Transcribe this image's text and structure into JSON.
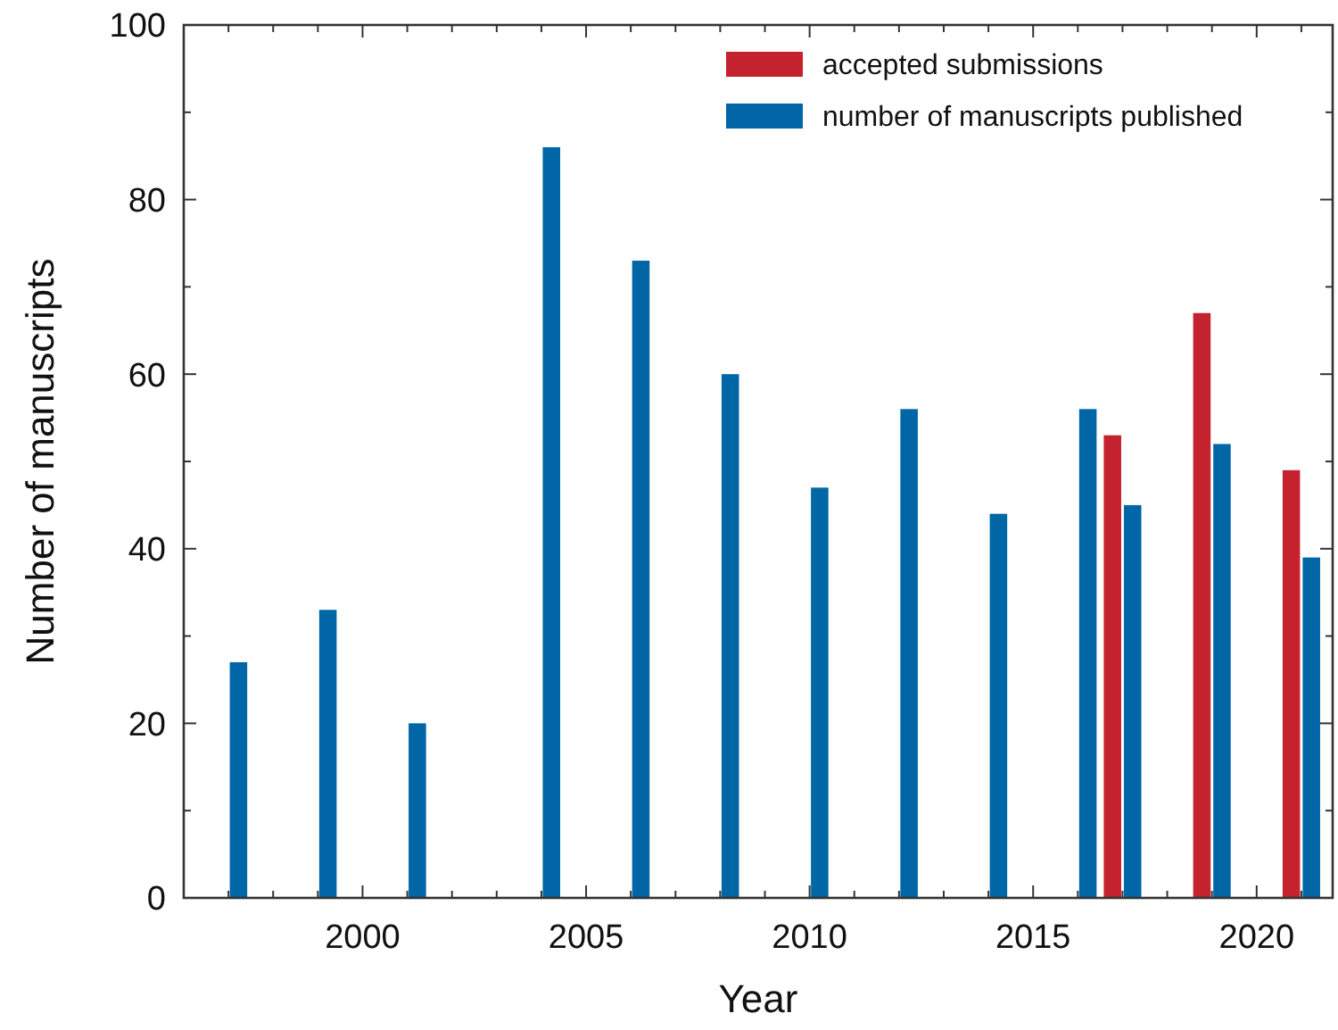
{
  "chart_data": {
    "type": "bar",
    "xlabel": "Year",
    "ylabel": "Number of manuscripts",
    "xlim": [
      1996,
      2021.7
    ],
    "xticks": [
      {
        "value": 1997,
        "label": null
      },
      {
        "value": 1998,
        "label": null
      },
      {
        "value": 1999,
        "label": null
      },
      2000,
      {
        "value": 2001,
        "label": null
      },
      {
        "value": 2002,
        "label": null
      },
      {
        "value": 2003,
        "label": null
      },
      {
        "value": 2004,
        "label": null
      },
      2005,
      {
        "value": 2006,
        "label": null
      },
      {
        "value": 2007,
        "label": null
      },
      {
        "value": 2008,
        "label": null
      },
      {
        "value": 2009,
        "label": null
      },
      2010,
      {
        "value": 2011,
        "label": null
      },
      {
        "value": 2012,
        "label": null
      },
      {
        "value": 2013,
        "label": null
      },
      {
        "value": 2014,
        "label": null
      },
      2015,
      {
        "value": 2016,
        "label": null
      },
      {
        "value": 2017,
        "label": null
      },
      {
        "value": 2018,
        "label": null
      },
      {
        "value": 2019,
        "label": null
      },
      2020,
      {
        "value": 2021,
        "label": null
      }
    ],
    "ylim": [
      0,
      100
    ],
    "yticks": [
      0,
      {
        "value": 10,
        "label": null
      },
      20,
      {
        "value": 30,
        "label": null
      },
      40,
      {
        "value": 50,
        "label": null
      },
      60,
      {
        "value": 70,
        "label": null
      },
      80,
      {
        "value": 90,
        "label": null
      },
      100
    ],
    "grid": false,
    "legend": "top right",
    "series": [
      {
        "name": "accepted submissions",
        "color": "#c4222e",
        "x": [
          2017,
          2019,
          2021
        ],
        "values": [
          53,
          67,
          49
        ]
      },
      {
        "name": "number of manuscripts published",
        "color": "#0066a6",
        "x": [
          1997,
          1999,
          2001,
          2004,
          2006,
          2008,
          2010,
          2012,
          2014,
          2016,
          2017,
          2019,
          2021
        ],
        "values": [
          27,
          33,
          20,
          86,
          73,
          60,
          47,
          56,
          44,
          56,
          45,
          52,
          39
        ]
      }
    ]
  }
}
